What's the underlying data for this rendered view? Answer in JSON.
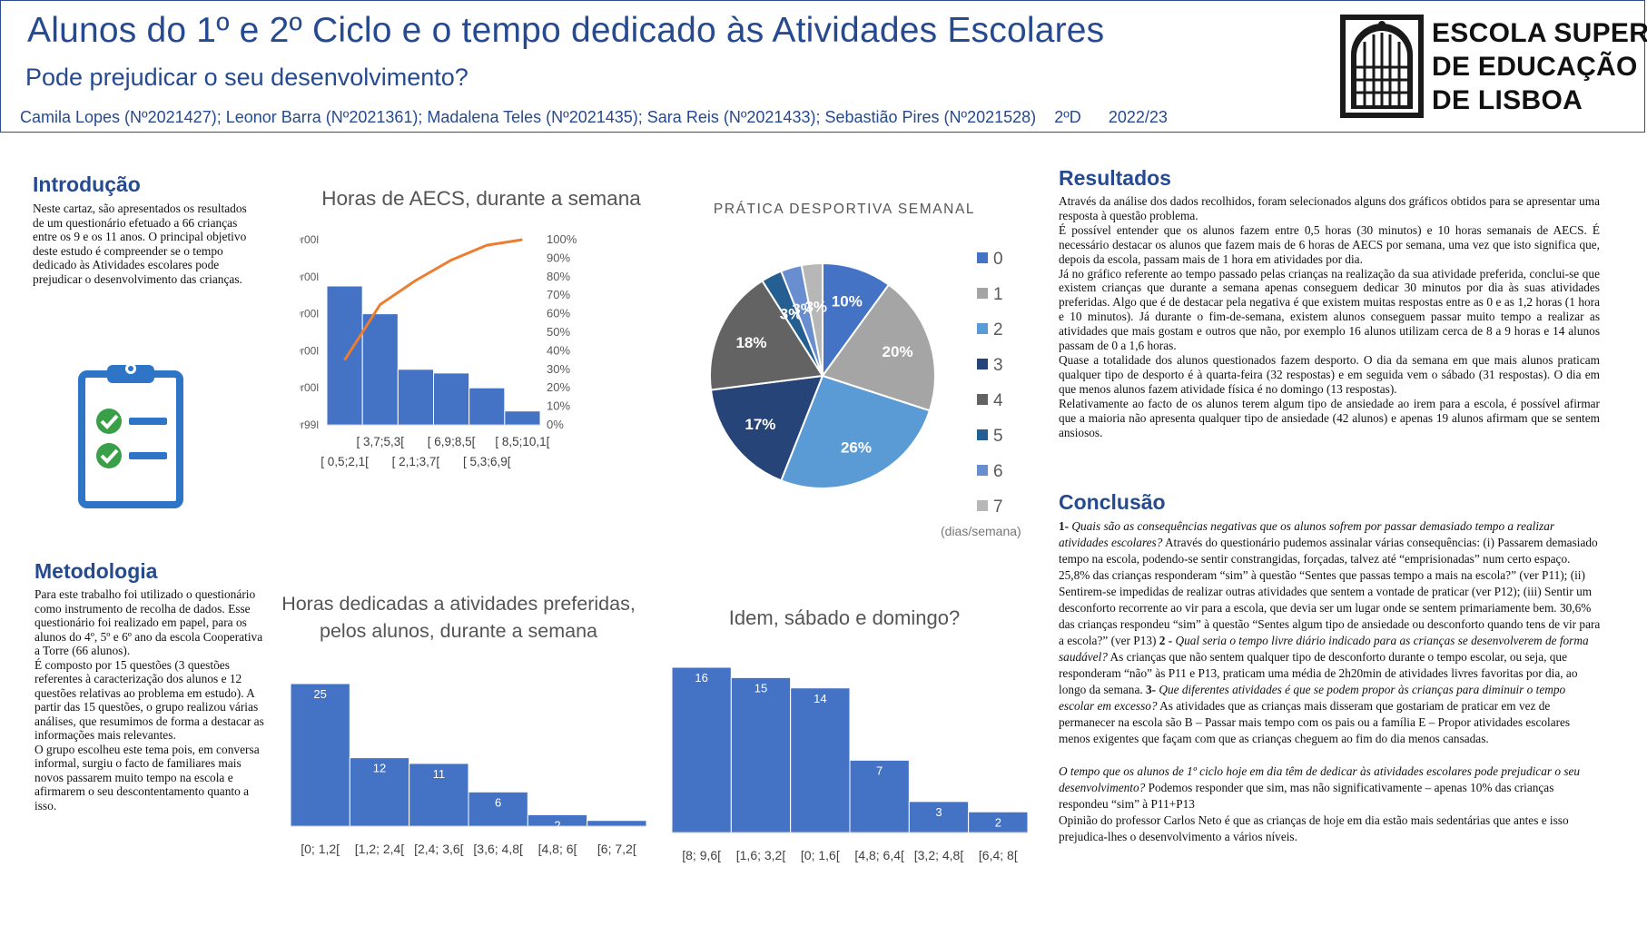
{
  "header": {
    "title": "Alunos do 1º e 2º Ciclo e o tempo dedicado às Atividades Escolares",
    "subtitle": "Pode prejudicar o seu desenvolvimento?",
    "authors": "Camila Lopes (Nº2021427); Leonor Barra (Nº2021361); Madalena Teles (Nº2021435); Sara Reis (Nº2021433); Sebastião Pires (Nº2021528)",
    "class_label": "2ºD",
    "year_label": "2022/23",
    "logo_lines": [
      "ESCOLA SUPERIOR",
      "DE EDUCAÇÃO",
      "DE LISBOA"
    ]
  },
  "intro": {
    "title": "Introdução",
    "text": "Neste cartaz, são apresentados os resultados de um questionário efetuado a 66 crianças entre os 9 e os 11 anos. O principal objetivo deste estudo é compreender se o tempo dedicado às Atividades escolares pode prejudicar o desenvolvimento das crianças.",
    "icon": "clipboard-checklist-icon"
  },
  "method": {
    "title": "Metodologia",
    "paragraphs": [
      "Para este trabalho foi utilizado o questionário como instrumento de recolha de dados. Esse questionário foi realizado em papel, para os alunos do 4º, 5º e 6º ano da escola Cooperativa a Torre (66 alunos).",
      "É composto por 15 questões (3 questões referentes à caracterização dos alunos e 12 questões relativas ao problema em estudo). A partir das 15 questões, o grupo realizou várias análises, que resumimos de forma a destacar as informações mais relevantes.",
      "O grupo escolheu este tema pois, em conversa informal, surgiu o facto de familiares mais novos passarem muito tempo na escola e afirmarem o seu descontentamento quanto a isso."
    ]
  },
  "results": {
    "title": "Resultados",
    "paragraphs": [
      "Através da análise dos dados recolhidos, foram selecionados alguns dos gráficos obtidos para se apresentar uma resposta à questão problema.",
      "É possível entender que os alunos fazem entre 0,5 horas (30 minutos) e 10 horas semanais de AECS. É necessário destacar os alunos que fazem mais de 6 horas de AECS por semana, uma vez que isto significa que, depois da escola, passam mais de 1 hora em atividades por dia.",
      "Já no gráfico referente ao tempo passado pelas crianças na realização da sua atividade preferida, conclui-se que existem crianças que durante a semana apenas conseguem dedicar 30 minutos por dia às suas atividades preferidas. Algo que é de destacar pela negativa é que existem muitas respostas entre as 0 e as 1,2 horas (1 hora e 10 minutos). Já durante o fim-de-semana, existem alunos conseguem passar muito tempo a realizar as atividades que mais gostam e outros que não, por exemplo 16 alunos utilizam cerca de 8 a 9 horas e 14 alunos passam de 0 a 1,6 horas.",
      "Quase a totalidade dos alunos questionados fazem desporto. O dia da semana em que mais alunos praticam qualquer tipo de desporto é à quarta-feira (32 respostas) e em seguida vem o sábado (31 respostas). O dia em que menos alunos fazem atividade física é no domingo (13 respostas).",
      "Relativamente ao facto de os alunos terem algum tipo de ansiedade ao irem para a escola, é possível afirmar que a maioria não apresenta qualquer tipo de ansiedade (42 alunos) e apenas 19 alunos afirmam que se sentem ansiosos."
    ]
  },
  "conclusion": {
    "title": "Conclusão",
    "q1_num": "1- ",
    "q1": "Quais são as consequências negativas que os alunos sofrem por passar demasiado tempo a realizar atividades escolares?",
    "a1": " Através do questionário pudemos assinalar várias consequências: (i) Passarem demasiado tempo na escola, podendo-se sentir constrangidas, forçadas, talvez até “emprisionadas” num certo espaço. 25,8% das crianças responderam “sim” à questão “Sentes que passas tempo a mais na escola?” (ver P11); (ii) Sentirem-se impedidas de realizar outras atividades que sentem a vontade de praticar (ver P12); (iii) Sentir um desconforto recorrente ao vir para a escola, que devia ser um lugar onde se sentem primariamente bem. 30,6% das crianças respondeu “sim” à questão “Sentes algum tipo de ansiedade ou desconforto quando tens de vir para a escola?” (ver P13) ",
    "q2_num": "2 - ",
    "q2": "Qual seria o tempo livre diário indicado para as crianças se desenvolverem de forma saudável?",
    "a2": " As crianças que não sentem qualquer tipo de desconforto durante o tempo escolar, ou seja, que responderam “não” às P11 e P13, praticam uma média de 2h20min de atividades livres favoritas por dia, ao longo da semana. ",
    "q3_num": "3- ",
    "q3": "Que diferentes atividades é que se podem propor às crianças para diminuir o tempo escolar em excesso?",
    "a3": " As atividades que as crianças mais disseram que gostariam de praticar em vez de permanecer na escola são B – Passar mais tempo com os pais ou a família E – Propor atividades escolares menos exigentes que façam com que as crianças cheguem ao fim do dia menos cansadas.",
    "final_q": "O tempo que os alunos de 1º ciclo hoje em dia têm de dedicar às atividades escolares pode prejudicar o seu desenvolvimento?",
    "final_a": " Podemos responder que sim, mas não significativamente – apenas 10% das crianças respondeu “sim” à P11+P13",
    "opinion": "Opinião do professor Carlos Neto é que as crianças de hoje em dia estão mais sedentárias que antes e isso prejudica-lhes o desenvolvimento a vários níveis."
  },
  "chart_data": [
    {
      "type": "bar",
      "title": "Horas de AECS, durante a semana",
      "categories": [
        "[ 0,5;2,1[",
        "[ 3,7;5,3[",
        "[ 2,1;3,7[",
        "[ 6,9;8,5[",
        "[ 5,3;6,9[",
        "[ 8,5;10,1["
      ],
      "values": [
        15,
        12,
        6,
        5.6,
        4,
        1.5
      ],
      "cumulative_percent": [
        35,
        65,
        78,
        89,
        97,
        100
      ],
      "y_tick_labels": [
        "1899r99l",
        "1900r00l",
        "1900r00l",
        "1900r00l",
        "1900r00l",
        "1900r00l"
      ],
      "y2_tick_labels": [
        "0%",
        "10%",
        "20%",
        "30%",
        "40%",
        "50%",
        "60%",
        "70%",
        "80%",
        "90%",
        "100%"
      ],
      "ylim": [
        0,
        20
      ],
      "colors": {
        "bar": "#4472c4",
        "line": "#ed7d31"
      }
    },
    {
      "type": "pie",
      "title": "PRÁTICA DESPORTIVA SEMANAL",
      "categories": [
        "0",
        "1",
        "2",
        "3",
        "4",
        "5",
        "6",
        "7"
      ],
      "values": [
        10,
        20,
        26,
        17,
        18,
        3,
        3,
        3
      ],
      "labels": [
        "10%",
        "20%",
        "26%",
        "17%",
        "18%",
        "3%",
        "3%",
        "3%"
      ],
      "colors": [
        "#4472c4",
        "#a5a5a5",
        "#5b9bd5",
        "#264478",
        "#636363",
        "#255e91",
        "#698ed0",
        "#b7b7b7"
      ],
      "legend_unit": "(dias/semana)"
    },
    {
      "type": "bar",
      "title": "Horas dedicadas a atividades preferidas, pelos alunos, durante a semana",
      "categories": [
        "[0; 1,2[",
        "[1,2; 2,4[",
        "[2,4; 3,6[",
        "[3,6; 4,8[",
        "[4,8; 6[",
        "[6; 7,2["
      ],
      "values": [
        25,
        12,
        11,
        6,
        2,
        1
      ],
      "color": "#4472c4"
    },
    {
      "type": "bar",
      "title": "Idem, sábado e domingo?",
      "categories": [
        "[8; 9,6[",
        "[1,6; 3,2[",
        "[0; 1,6[",
        "[4,8; 6,4[",
        "[3,2; 4,8[",
        "[6,4; 8["
      ],
      "values": [
        16,
        15,
        14,
        7,
        3,
        2
      ],
      "color": "#4472c4"
    }
  ]
}
